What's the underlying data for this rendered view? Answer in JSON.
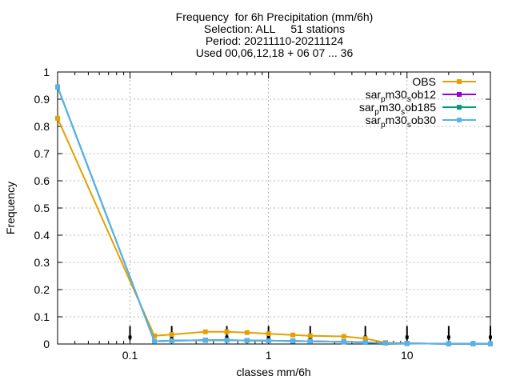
{
  "chart_data": {
    "type": "line",
    "title_lines": [
      "Frequency  for 6h Precipitation (mm/6h)",
      "Selection: ALL     51 stations",
      "Period: 20211110-20211124",
      "Used 00,06,12,18 + 06 07 ... 36"
    ],
    "xlabel": "classes mm/6h",
    "ylabel": "Frequency",
    "x_scale": "log",
    "xlim": [
      0.03,
      40
    ],
    "ylim": [
      0,
      1
    ],
    "x_ticks": [
      {
        "value": 0.1,
        "label": "0.1"
      },
      {
        "value": 1,
        "label": "1"
      },
      {
        "value": 10,
        "label": "10"
      }
    ],
    "y_ticks": [
      {
        "value": 0,
        "label": "0"
      },
      {
        "value": 0.1,
        "label": "0.1"
      },
      {
        "value": 0.2,
        "label": "0.2"
      },
      {
        "value": 0.3,
        "label": "0.3"
      },
      {
        "value": 0.4,
        "label": "0.4"
      },
      {
        "value": 0.5,
        "label": "0.5"
      },
      {
        "value": 0.6,
        "label": "0.6"
      },
      {
        "value": 0.7,
        "label": "0.7"
      },
      {
        "value": 0.8,
        "label": "0.8"
      },
      {
        "value": 0.9,
        "label": "0.9"
      },
      {
        "value": 1,
        "label": "1"
      }
    ],
    "grid": true,
    "legend_position": "top-right",
    "x": [
      0.03,
      0.15,
      0.2,
      0.35,
      0.5,
      0.7,
      1.0,
      1.5,
      2.0,
      3.5,
      5.0,
      7.0,
      10,
      20,
      30,
      40
    ],
    "series": [
      {
        "name": "OBS",
        "legend": {
          "base": "OBS",
          "sub": "",
          "rest": ""
        },
        "color": "#e69f00",
        "values": [
          0.83,
          0.03,
          0.035,
          0.045,
          0.045,
          0.042,
          0.038,
          0.033,
          0.03,
          0.028,
          0.02,
          0.005,
          0.002,
          0.001,
          0.001,
          0.001
        ]
      },
      {
        "name": "sar_pm30_sob12",
        "legend": {
          "base": "sar",
          "sub": "p",
          "mid": "m30",
          "sub2": "s",
          "rest": "ob12"
        },
        "color": "#9400d3",
        "values": [
          0.945,
          0.01,
          0.012,
          0.014,
          0.014,
          0.013,
          0.012,
          0.011,
          0.01,
          0.008,
          0.006,
          0.003,
          0.002,
          0.001,
          0.001,
          0.001
        ]
      },
      {
        "name": "sar_pm30_sob185",
        "legend": {
          "base": "sar",
          "sub": "p",
          "mid": "m30",
          "sub2": "s",
          "rest": "ob185"
        },
        "color": "#009e73",
        "values": [
          0.945,
          0.01,
          0.012,
          0.014,
          0.014,
          0.013,
          0.012,
          0.011,
          0.01,
          0.008,
          0.006,
          0.003,
          0.002,
          0.001,
          0.001,
          0.001
        ]
      },
      {
        "name": "sar_pm30_sob30",
        "legend": {
          "base": "sar",
          "sub": "p",
          "mid": "m30",
          "sub2": "s",
          "rest": "ob30"
        },
        "color": "#56b4e9",
        "values": [
          0.945,
          0.01,
          0.012,
          0.014,
          0.014,
          0.013,
          0.012,
          0.011,
          0.01,
          0.008,
          0.006,
          0.003,
          0.002,
          0.001,
          0.001,
          0.001
        ]
      }
    ],
    "error_bar_x": [
      0.1,
      0.2,
      0.5,
      1.0,
      2.0,
      5.0,
      10,
      20,
      40
    ],
    "error_bar_y": [
      0.025,
      0.025,
      0.025,
      0.025,
      0.025,
      0.025,
      0.025,
      0.025,
      0.025
    ]
  }
}
